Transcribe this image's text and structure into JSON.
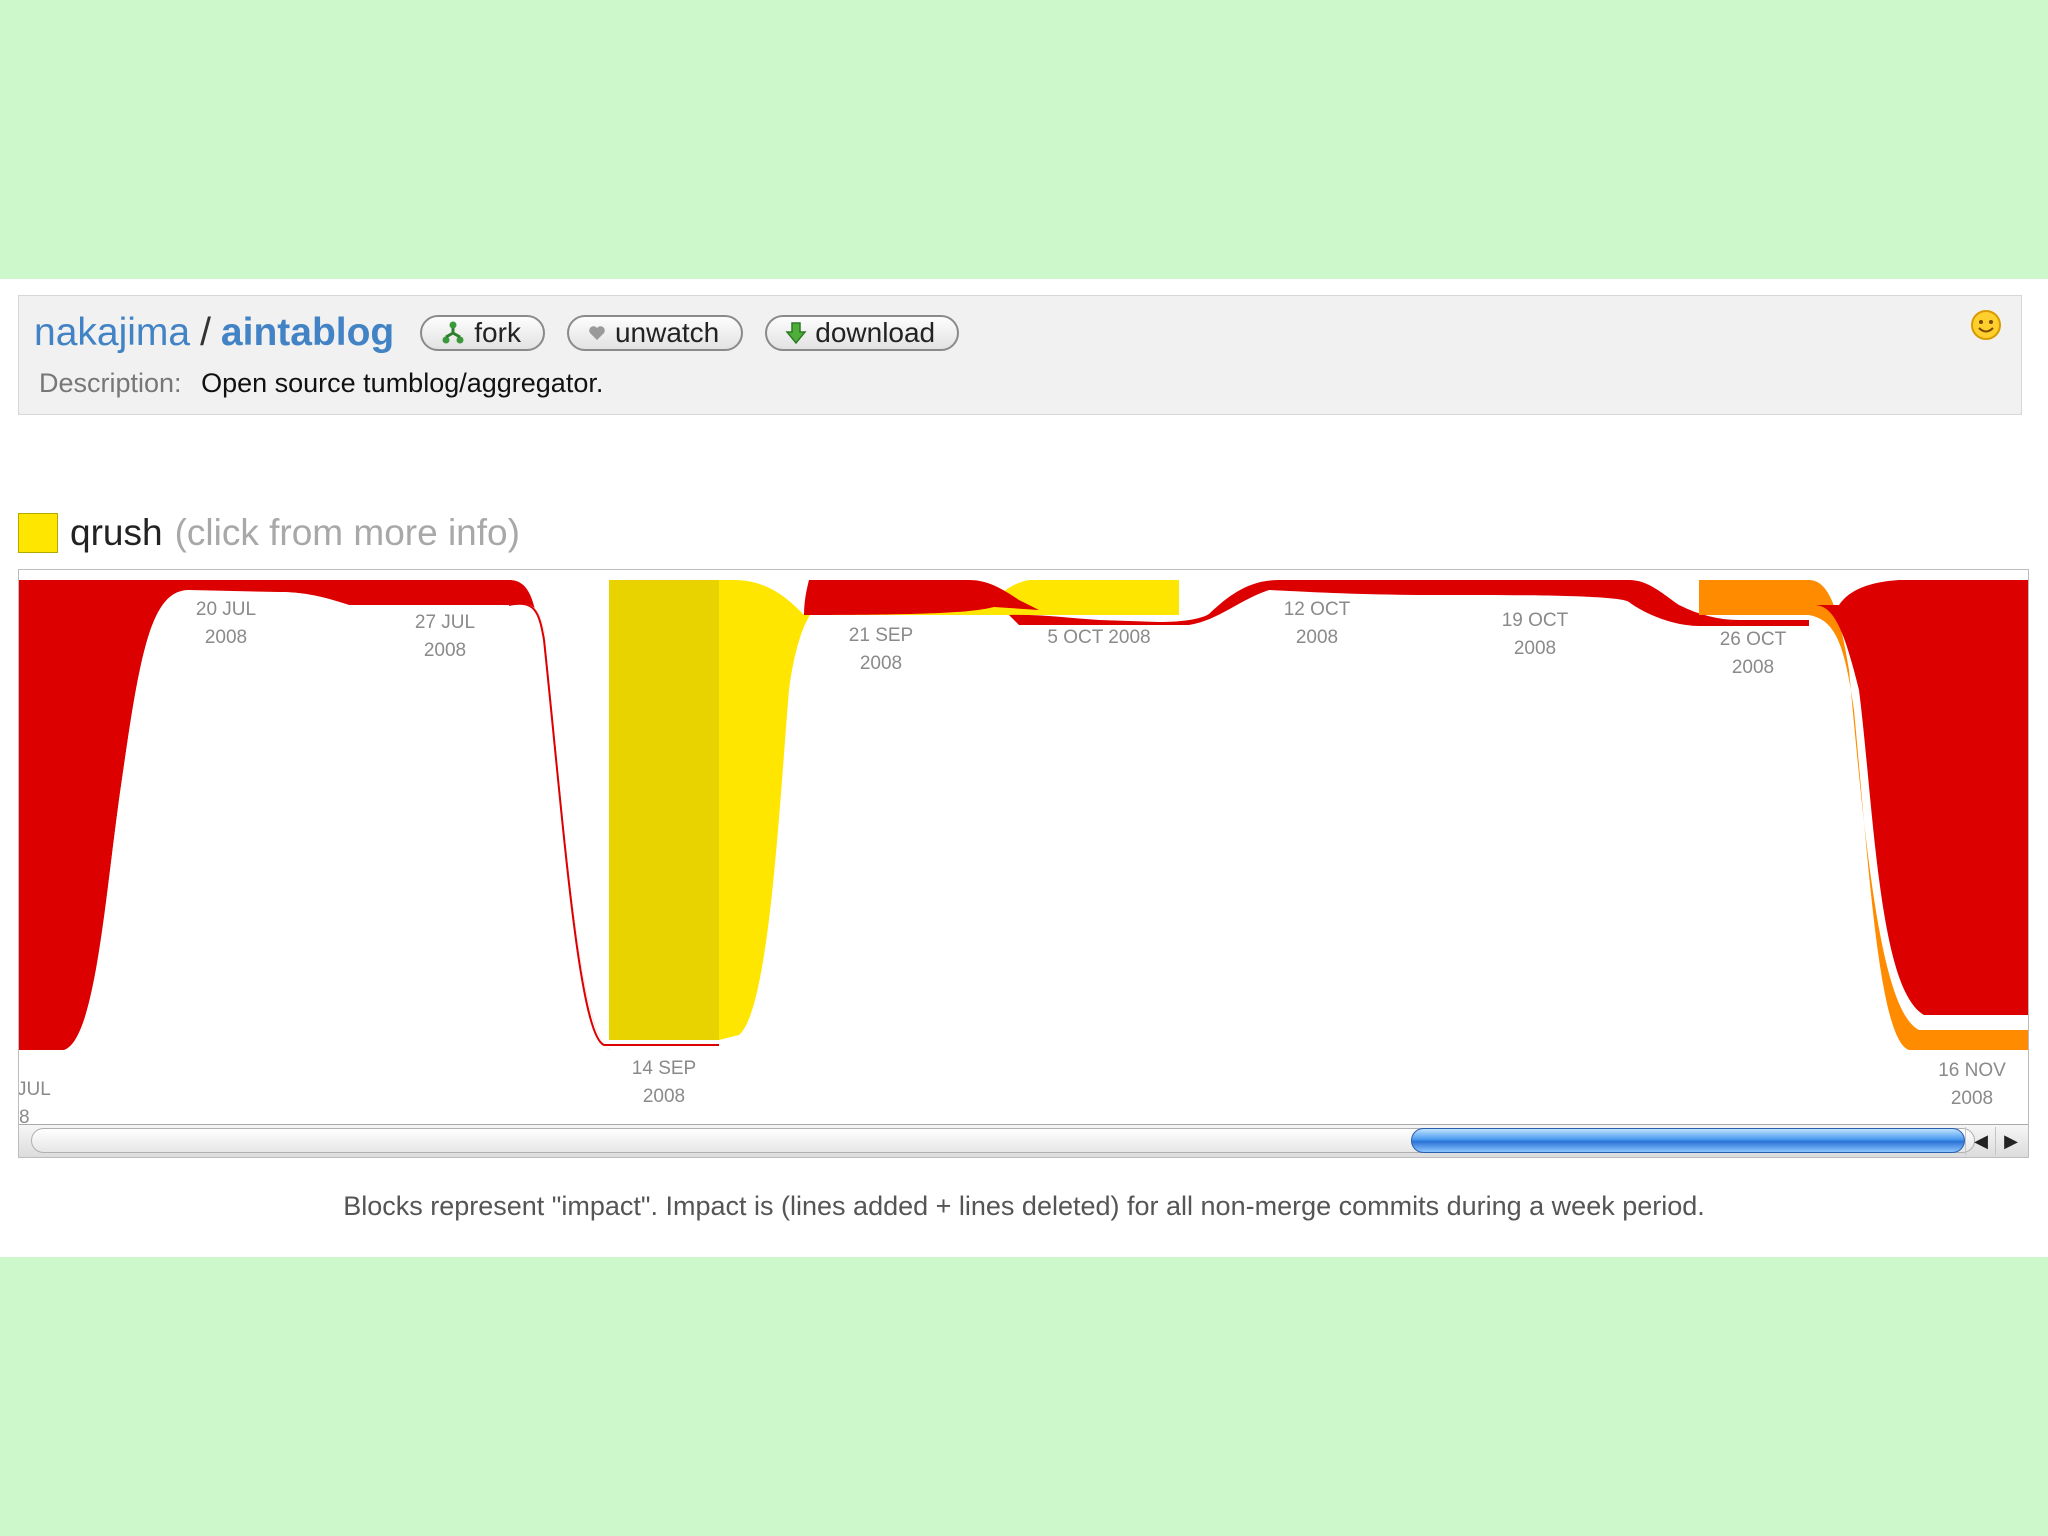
{
  "header": {
    "owner": "nakajima",
    "separator": "/",
    "repo": "aintablog",
    "buttons": {
      "fork": "fork",
      "unwatch": "unwatch",
      "download": "download"
    },
    "description_label": "Description:",
    "description": "Open source tumblog/aggregator.",
    "icons": [
      "fork-icon",
      "heart-icon",
      "download-arrow-icon",
      "smiley-icon"
    ]
  },
  "legend": {
    "name": "qrush",
    "hint": "(click from more info)",
    "color": "#ffe600"
  },
  "chart_data": {
    "type": "area",
    "description_text": "Blocks represent \"impact\". Impact is (lines added + lines deleted) for all non-merge commits during a week period.",
    "x_tick_labels": [
      {
        "line1": "JUL",
        "line2": "8"
      },
      {
        "line1": "20 JUL",
        "line2": "2008"
      },
      {
        "line1": "27 JUL",
        "line2": "2008"
      },
      {
        "line1": "14 SEP",
        "line2": "2008"
      },
      {
        "line1": "21 SEP",
        "line2": "2008"
      },
      {
        "line1": "5 OCT 2008",
        "line2": ""
      },
      {
        "line1": "12 OCT",
        "line2": "2008"
      },
      {
        "line1": "19 OCT",
        "line2": "2008"
      },
      {
        "line1": "26 OCT",
        "line2": "2008"
      },
      {
        "line1": "16 NOV",
        "line2": "2008"
      }
    ],
    "series_colors": {
      "red": "#dd0000",
      "yellow": "#ffe600",
      "dark_yellow": "#e8d200",
      "orange": "#ff8c00"
    }
  },
  "scrollbar": {
    "left_arrow": "◀",
    "right_arrow": "▶",
    "thumb_start": 0.71,
    "thumb_end": 0.995
  },
  "caption": "Blocks represent \"impact\". Impact is (lines added + lines deleted) for all non-merge commits during a week period."
}
